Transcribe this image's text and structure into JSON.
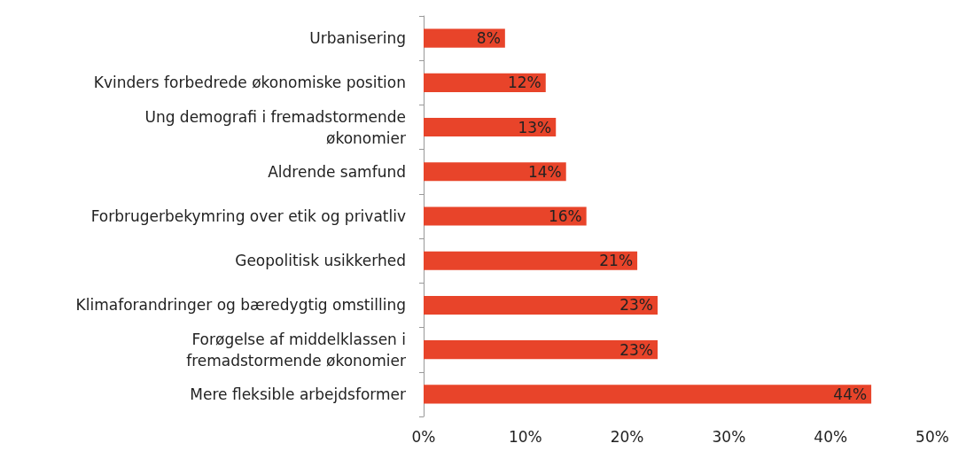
{
  "chart_data": {
    "type": "bar",
    "orientation": "horizontal",
    "categories": [
      "Urbanisering",
      "Kvinders forbedrede økonomiske position",
      "Ung demografi i fremadstormende\nøkonomier",
      "Aldrende samfund",
      "Forbrugerbekymring over etik og privatliv",
      "Geopolitisk usikkerhed",
      "Klimaforandringer og bæredygtig omstilling",
      "Forøgelse af middelklassen i\nfremadstormende økonomier",
      "Mere fleksible arbejdsformer"
    ],
    "values": [
      8,
      12,
      13,
      14,
      16,
      21,
      23,
      23,
      44
    ],
    "value_labels": [
      "8%",
      "12%",
      "13%",
      "14%",
      "16%",
      "21%",
      "23%",
      "23%",
      "44%"
    ],
    "color": "#e8442a",
    "xlim": [
      0,
      50
    ],
    "xticks": [
      {
        "value": 0,
        "label": "0%"
      },
      {
        "value": 10,
        "label": "10%"
      },
      {
        "value": 20,
        "label": "20%"
      },
      {
        "value": 30,
        "label": "30%"
      },
      {
        "value": 40,
        "label": "40%"
      },
      {
        "value": 50,
        "label": "50%"
      }
    ],
    "grid": false
  }
}
